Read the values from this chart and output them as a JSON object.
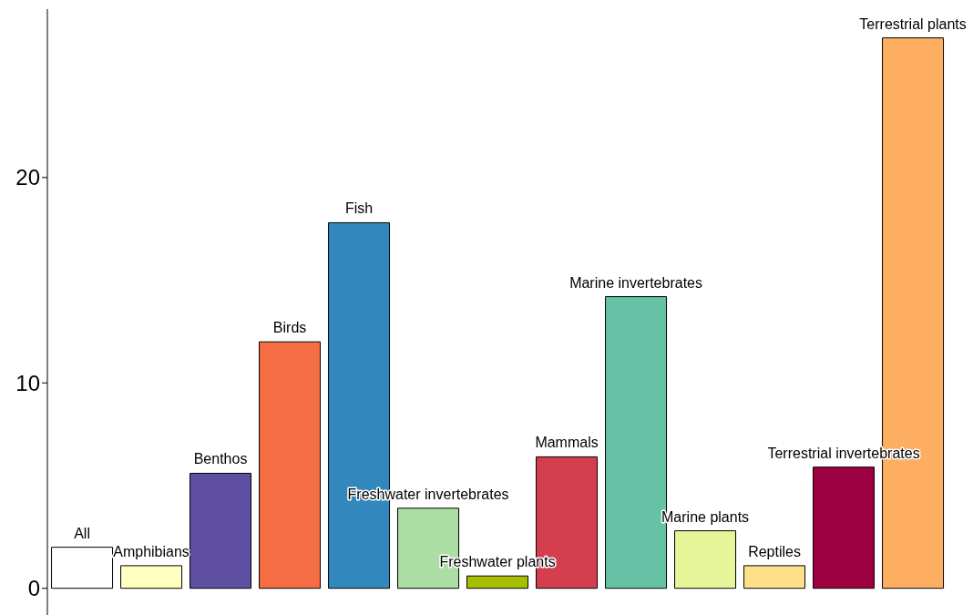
{
  "chart_data": {
    "type": "bar",
    "categories": [
      "All",
      "Amphibians",
      "Benthos",
      "Birds",
      "Fish",
      "Freshwater invertebrates",
      "Freshwater plants",
      "Mammals",
      "Marine invertebrates",
      "Marine plants",
      "Reptiles",
      "Terrestrial invertebrates",
      "Terrestrial plants"
    ],
    "values": [
      2.0,
      1.1,
      5.6,
      12.0,
      17.8,
      3.9,
      0.6,
      6.4,
      14.2,
      2.8,
      1.1,
      5.9,
      26.8
    ],
    "colors": [
      "#ffffff",
      "#ffffbf",
      "#5e4fa2",
      "#f46d43",
      "#3288bd",
      "#abdda4",
      "#a6bd00",
      "#d53e4f",
      "#66c2a5",
      "#e6f598",
      "#fee08b",
      "#9e0142",
      "#fdae61"
    ],
    "ylim": [
      -1.3,
      28.2
    ],
    "yticks": [
      0,
      10,
      20
    ],
    "tick_labels": "y",
    "grid": false,
    "legend": false
  }
}
